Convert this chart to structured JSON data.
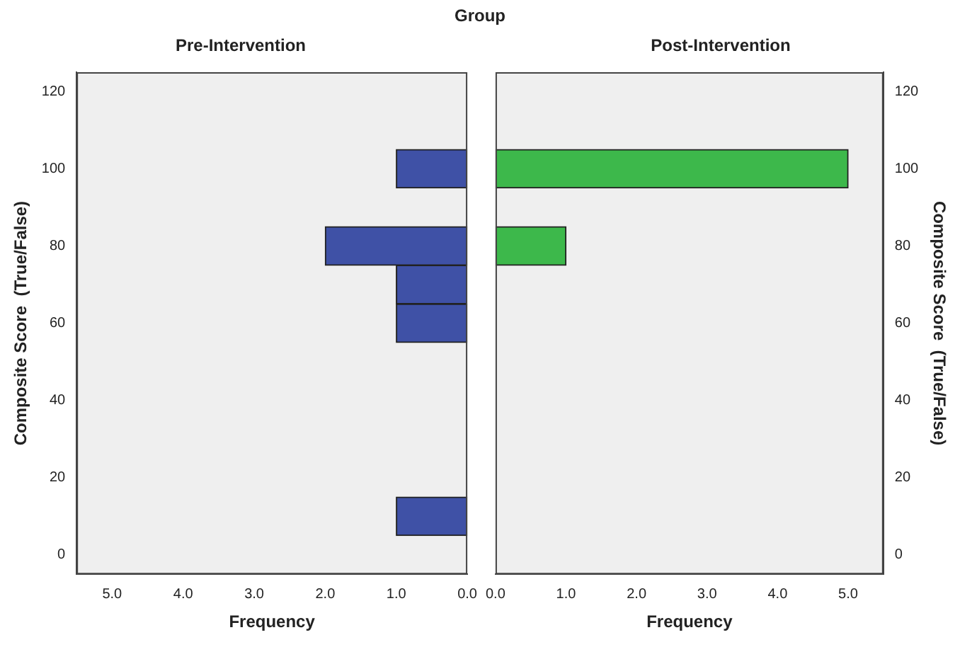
{
  "chart_data": [
    {
      "type": "histogram",
      "title": "Group",
      "subtitle": "Pre-Intervention",
      "orientation": "horizontal",
      "xlabel": "Frequency",
      "ylabel": "Composite Score  (True/False)",
      "bins": [
        5,
        15,
        25,
        35,
        45,
        55,
        65,
        75,
        85,
        95,
        105
      ],
      "values": [
        1,
        0,
        0,
        0,
        0,
        1,
        1,
        2,
        0,
        1
      ],
      "color": "#3f51a6",
      "xlim": [
        5.5,
        0
      ],
      "xticks": [
        {
          "value": 5,
          "label": "5.0"
        },
        {
          "value": 4,
          "label": "4.0"
        },
        {
          "value": 3,
          "label": "3.0"
        },
        {
          "value": 2,
          "label": "2.0"
        },
        {
          "value": 1,
          "label": "1.0"
        },
        {
          "value": 0,
          "label": "0.0"
        }
      ],
      "ylim": [
        -5,
        125
      ],
      "yticks": [
        0,
        20,
        40,
        60,
        80,
        100,
        120
      ],
      "grid": false,
      "legend": false
    },
    {
      "type": "histogram",
      "subtitle": "Post-Intervention",
      "orientation": "horizontal",
      "xlabel": "Frequency",
      "ylabel": "Composite Score  (True/False)",
      "bins": [
        5,
        15,
        25,
        35,
        45,
        55,
        65,
        75,
        85,
        95,
        105
      ],
      "values": [
        0,
        0,
        0,
        0,
        0,
        0,
        0,
        1,
        0,
        5
      ],
      "color": "#3db84b",
      "xlim": [
        0,
        5.5
      ],
      "xticks": [
        {
          "value": 0,
          "label": "0.0"
        },
        {
          "value": 1,
          "label": "1.0"
        },
        {
          "value": 2,
          "label": "2.0"
        },
        {
          "value": 3,
          "label": "3.0"
        },
        {
          "value": 4,
          "label": "4.0"
        },
        {
          "value": 5,
          "label": "5.0"
        }
      ],
      "ylim": [
        -5,
        125
      ],
      "yticks": [
        0,
        20,
        40,
        60,
        80,
        100,
        120
      ],
      "grid": false,
      "legend": false
    }
  ]
}
